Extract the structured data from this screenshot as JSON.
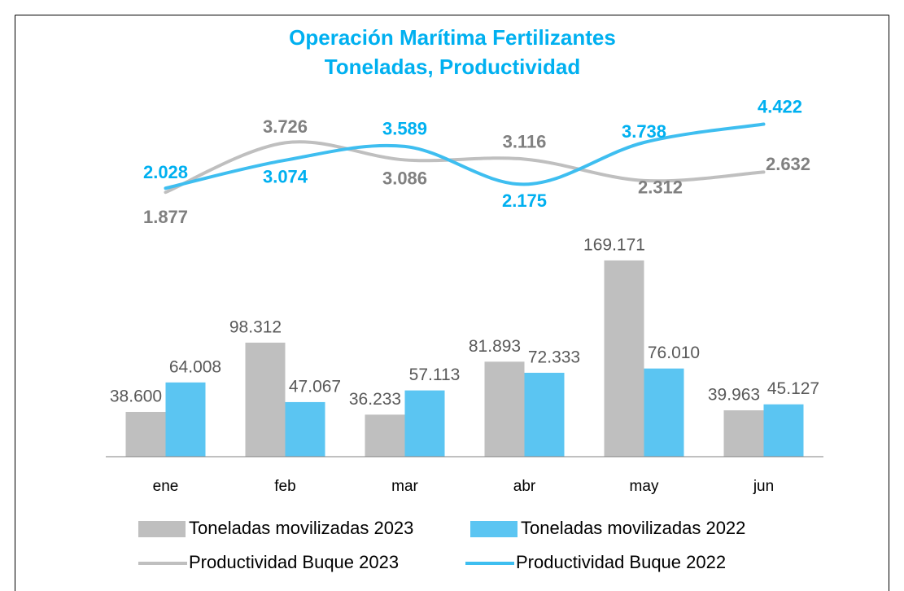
{
  "chart_data": {
    "type": "bar",
    "title": "Operación Marítima Fertilizantes",
    "subtitle": "Toneladas, Productividad",
    "categories": [
      "ene",
      "feb",
      "mar",
      "abr",
      "may",
      "jun"
    ],
    "ylim": [
      0,
      300000
    ],
    "y2lim": [
      -8000,
      5000
    ],
    "series": [
      {
        "name": "Toneladas movilizadas 2023",
        "type": "bar",
        "color": "#bfbfbf",
        "values": [
          38600,
          98312,
          36233,
          81893,
          169171,
          39963
        ],
        "value_labels": [
          "38.600",
          "98.312",
          "36.233",
          "81.893",
          "169.171",
          "39.963"
        ]
      },
      {
        "name": "Toneladas movilizadas 2022",
        "type": "bar",
        "color": "#5bc5f2",
        "values": [
          64008,
          47067,
          57113,
          72333,
          76010,
          45127
        ],
        "value_labels": [
          "64.008",
          "47.067",
          "57.113",
          "72.333",
          "76.010",
          "45.127"
        ]
      },
      {
        "name": "Productividad Buque 2023",
        "type": "line",
        "axis": "y2",
        "color": "#bfbfbf",
        "values": [
          1877,
          3726,
          3086,
          3116,
          2312,
          2632
        ],
        "value_labels": [
          "1.877",
          "3.726",
          "3.086",
          "3.116",
          "2.312",
          "2.632"
        ]
      },
      {
        "name": "Productividad Buque 2022",
        "type": "line",
        "axis": "y2",
        "color": "#3ebef0",
        "values": [
          2028,
          3074,
          3589,
          2175,
          3738,
          4422
        ],
        "value_labels": [
          "2.028",
          "3.074",
          "3.589",
          "2.175",
          "3.738",
          "4.422"
        ]
      }
    ]
  }
}
